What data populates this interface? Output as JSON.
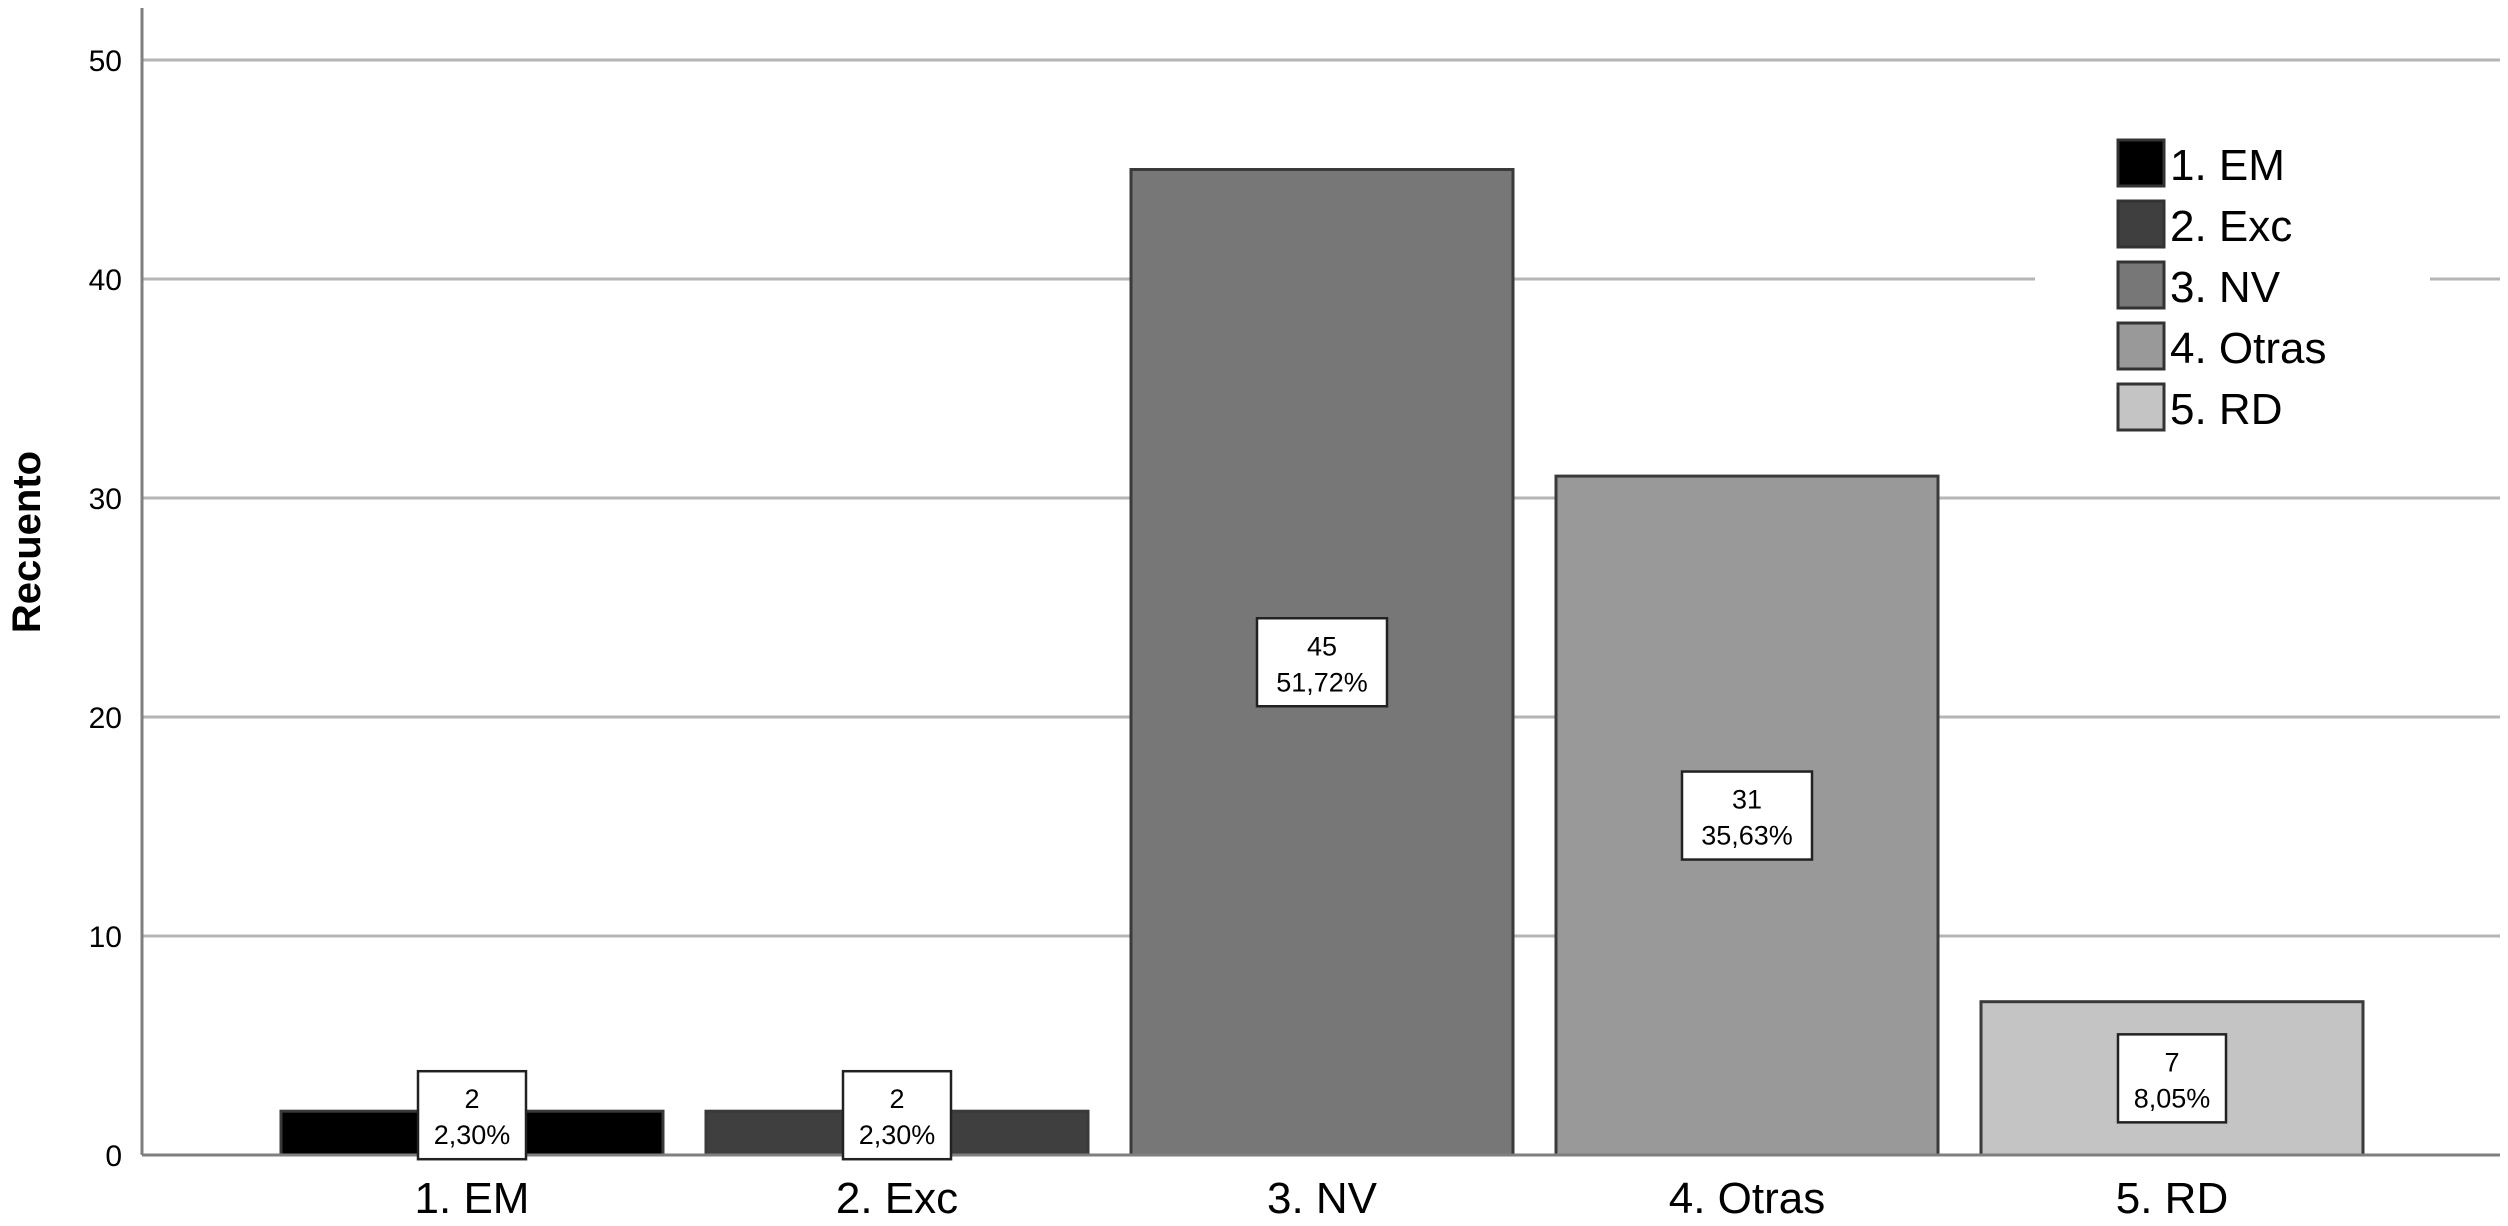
{
  "chart_data": {
    "type": "bar",
    "categories": [
      "1. EM",
      "2. Exc",
      "3. NV",
      "4. Otras",
      "5. RD"
    ],
    "values": [
      2,
      2,
      45,
      31,
      7
    ],
    "percent_labels": [
      "2,30%",
      "2,30%",
      "51,72%",
      "35,63%",
      "8,05%"
    ],
    "colors": [
      "#000000",
      "#3f3f3f",
      "#777777",
      "#999999",
      "#c4c4c4"
    ],
    "title": "",
    "xlabel": "",
    "ylabel": "Recuento",
    "ylim": [
      0,
      52
    ],
    "yticks": [
      0,
      10,
      20,
      30,
      40,
      50
    ],
    "grid": true,
    "legend": {
      "position": "top-right",
      "entries": [
        "1. EM",
        "2. Exc",
        "3. NV",
        "4. Otras",
        "5. RD"
      ]
    }
  }
}
